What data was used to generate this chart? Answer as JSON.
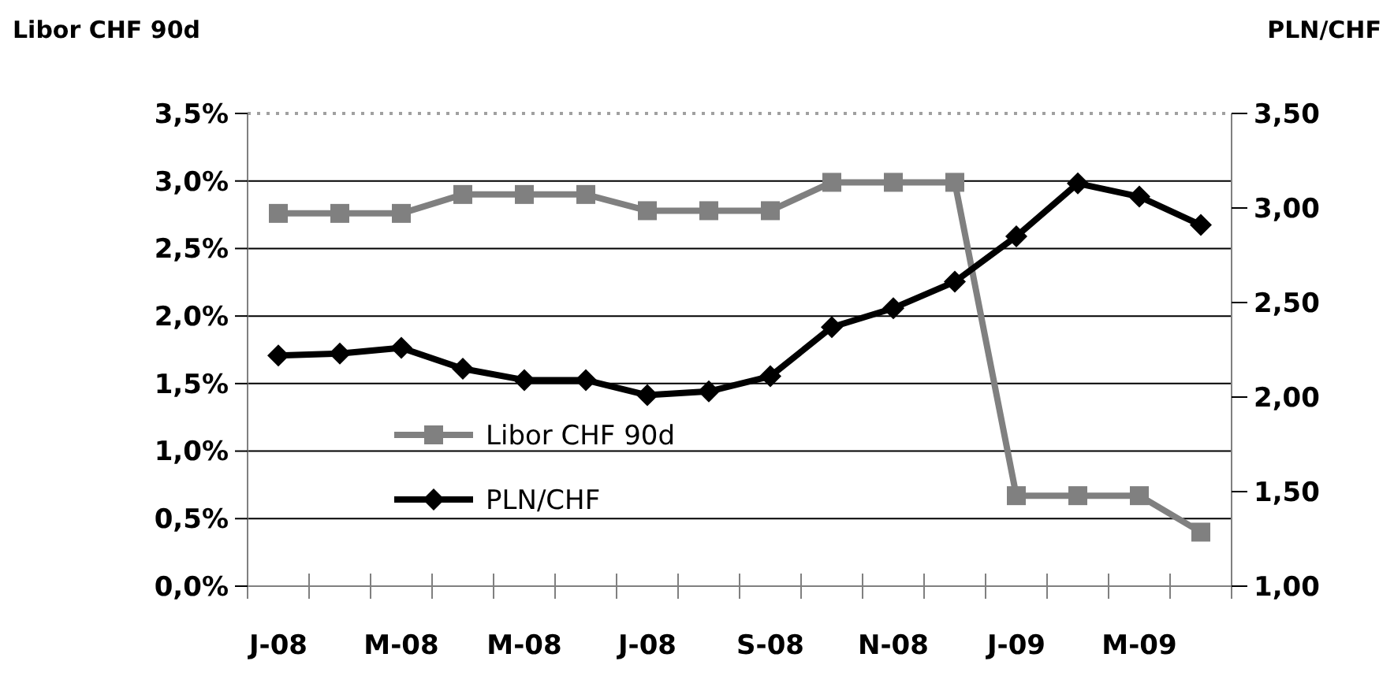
{
  "chart_data": {
    "type": "line",
    "ylabel": "Libor CHF 90d",
    "y2label": "PLN/CHF",
    "categories": [
      "J-08",
      null,
      "M-08",
      null,
      "M-08",
      null,
      "J-08",
      null,
      "S-08",
      null,
      "N-08",
      null,
      "J-09",
      null,
      "M-09",
      null
    ],
    "series": [
      {
        "name": "Libor CHF 90d",
        "color": "#808080",
        "marker": "square",
        "values": [
          2.76,
          2.76,
          2.76,
          2.9,
          2.9,
          2.9,
          2.78,
          2.78,
          2.78,
          2.99,
          2.99,
          2.99,
          0.67,
          0.67,
          0.67,
          0.4
        ]
      },
      {
        "name": "PLN/CHF",
        "color": "#000000",
        "marker": "diamond",
        "axis": "y2",
        "values": [
          2.22,
          2.23,
          2.26,
          2.15,
          2.09,
          2.09,
          2.01,
          2.03,
          2.11,
          2.37,
          2.47,
          2.61,
          2.85,
          3.13,
          3.06,
          2.91
        ]
      }
    ],
    "ylim": [
      0,
      3.5
    ],
    "yticks": [
      {
        "value": 0,
        "label": "0,0%"
      },
      {
        "value": 0.5,
        "label": "0,5%"
      },
      {
        "value": 1,
        "label": "1,0%"
      },
      {
        "value": 1.5,
        "label": "1,5%"
      },
      {
        "value": 2,
        "label": "2,0%"
      },
      {
        "value": 2.5,
        "label": "2,5%"
      },
      {
        "value": 3,
        "label": "3,0%"
      },
      {
        "value": 3.5,
        "label": "3,5%"
      }
    ],
    "y2lim": [
      1,
      3.5
    ],
    "y2ticks": [
      {
        "value": 1,
        "label": "1,00"
      },
      {
        "value": 1.5,
        "label": "1,50"
      },
      {
        "value": 2,
        "label": "2,00"
      },
      {
        "value": 2.5,
        "label": "2,50"
      },
      {
        "value": 3,
        "label": "3,00"
      },
      {
        "value": 3.5,
        "label": "3,50"
      }
    ],
    "grid": "y",
    "legend": "bottom left",
    "line_style": "solid"
  }
}
